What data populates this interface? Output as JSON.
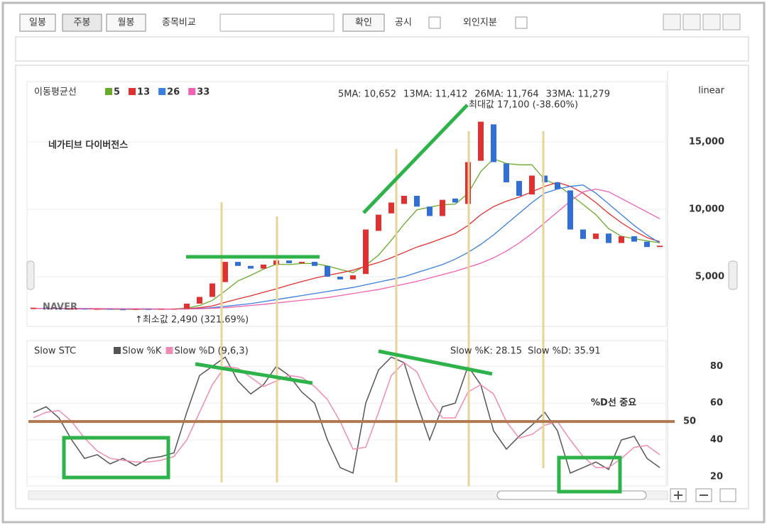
{
  "toolbar": {
    "buttons": [
      "일봉",
      "주봉",
      "월봉"
    ],
    "compare_label": "종목비교",
    "confirm": "확인",
    "checks": [
      "공시",
      "외인지분"
    ]
  },
  "price_chart": {
    "type": "candlestick",
    "ma_title": "이동평균선",
    "scale": "linear",
    "open": [
      2600,
      2700,
      2650,
      2600,
      2620,
      2580,
      2600,
      2570,
      2560,
      2590,
      2580,
      2600,
      2620,
      3000,
      3500,
      4600,
      6100,
      5800,
      5600,
      5900,
      6200,
      6000,
      6100,
      5800,
      5000,
      4800,
      5200,
      8400,
      9700,
      10400,
      11000,
      10200,
      9500,
      10800,
      10400,
      13600,
      16300,
      13400,
      12100,
      11100,
      12500,
      12000,
      11400,
      8500,
      7800,
      8200,
      7500,
      8000,
      7600,
      7200
    ],
    "close": [
      2700,
      2650,
      2600,
      2620,
      2580,
      2600,
      2570,
      2560,
      2590,
      2580,
      2600,
      2620,
      3000,
      3500,
      4500,
      6100,
      5800,
      5600,
      5900,
      6200,
      6000,
      6100,
      5800,
      5000,
      4800,
      5100,
      8500,
      9600,
      10500,
      11000,
      10200,
      9500,
      10700,
      10500,
      13500,
      16500,
      13500,
      12000,
      11000,
      12500,
      12000,
      11500,
      8500,
      7800,
      8200,
      7500,
      8000,
      7600,
      7200,
      7300
    ],
    "up_color": "#e03030",
    "down_color": "#2f6fd6",
    "ylim": [
      1316,
      19474
    ],
    "yticks": [
      {
        "value": 15000,
        "label": "15,000"
      },
      {
        "value": 10000,
        "label": "10,000"
      },
      {
        "value": 5000,
        "label": "5,000"
      }
    ],
    "ma": [
      {
        "name": "5",
        "color": "#6aaa2a",
        "values": [
          2650,
          2650,
          2640,
          2630,
          2620,
          2600,
          2590,
          2580,
          2580,
          2590,
          2590,
          2600,
          2680,
          2860,
          3240,
          3940,
          4680,
          5100,
          5560,
          5920,
          5900,
          5980,
          5980,
          5800,
          5540,
          5300,
          5840,
          6600,
          7700,
          8900,
          9960,
          10160,
          10340,
          10380,
          11180,
          12800,
          13740,
          13400,
          13300,
          13300,
          12200,
          11800,
          11100,
          10360,
          9600,
          8560,
          8000,
          7820,
          7660,
          7520
        ]
      },
      {
        "name": "13",
        "color": "#e03030",
        "values": [
          2650,
          2640,
          2630,
          2620,
          2610,
          2610,
          2600,
          2600,
          2600,
          2600,
          2600,
          2600,
          2630,
          2700,
          2830,
          3100,
          3350,
          3580,
          3840,
          4100,
          4380,
          4640,
          4890,
          5100,
          5280,
          5480,
          5780,
          6050,
          6400,
          6800,
          7200,
          7500,
          7850,
          8200,
          8800,
          9600,
          10200,
          10600,
          10900,
          11300,
          11700,
          12000,
          11700,
          11200,
          10500,
          9700,
          9000,
          8400,
          7900,
          7600
        ]
      },
      {
        "name": "26",
        "color": "#3a7fe0",
        "values": [
          2650,
          2650,
          2640,
          2640,
          2630,
          2630,
          2620,
          2620,
          2610,
          2610,
          2600,
          2600,
          2610,
          2640,
          2700,
          2800,
          2900,
          3000,
          3150,
          3300,
          3450,
          3600,
          3750,
          3900,
          4050,
          4200,
          4400,
          4600,
          4800,
          5000,
          5300,
          5600,
          5900,
          6300,
          6800,
          7400,
          8100,
          8900,
          9700,
          10500,
          11200,
          11500,
          11700,
          11800,
          11200,
          10400,
          9600,
          8800,
          8100,
          7500
        ]
      },
      {
        "name": "33",
        "color": "#f060b0",
        "values": [
          2650,
          2650,
          2650,
          2640,
          2640,
          2630,
          2630,
          2620,
          2620,
          2610,
          2610,
          2600,
          2600,
          2620,
          2650,
          2700,
          2780,
          2860,
          2950,
          3050,
          3150,
          3250,
          3350,
          3450,
          3600,
          3750,
          3900,
          4050,
          4250,
          4450,
          4650,
          4900,
          5150,
          5400,
          5700,
          6000,
          6400,
          6900,
          7500,
          8200,
          9000,
          9800,
          10600,
          11300,
          11500,
          11300,
          10800,
          10300,
          9800,
          9300
        ]
      }
    ],
    "ma_readout": [
      {
        "label": "5MA:",
        "value": "10,652"
      },
      {
        "label": "13MA:",
        "value": "11,412"
      },
      {
        "label": "26MA:",
        "value": "11,764"
      },
      {
        "label": "33MA:",
        "value": "11,279"
      }
    ],
    "max_label": "최대값 17,100 (-38.60%)",
    "min_label": "↑최소값 2,490 (321.69%)",
    "watermark": "NAVER"
  },
  "stoch_chart": {
    "type": "line",
    "title": "Slow STC",
    "series": [
      {
        "name": "Slow %K",
        "color": "#555555",
        "values": [
          55,
          58,
          52,
          40,
          30,
          32,
          27,
          30,
          26,
          30,
          31,
          33,
          55,
          75,
          80,
          85,
          72,
          65,
          70,
          80,
          75,
          66,
          60,
          40,
          25,
          22,
          60,
          78,
          85,
          82,
          60,
          40,
          58,
          60,
          80,
          70,
          45,
          35,
          42,
          48,
          55,
          45,
          22,
          25,
          28,
          24,
          40,
          42,
          30,
          25
        ]
      },
      {
        "name": "Slow %D (9,6,3)",
        "color": "#f08cb4",
        "values": [
          52,
          55,
          56,
          50,
          41,
          34,
          30,
          29,
          28,
          28,
          29,
          31,
          40,
          55,
          70,
          80,
          79,
          74,
          69,
          72,
          75,
          74,
          69,
          62,
          50,
          35,
          36,
          55,
          75,
          82,
          77,
          62,
          52,
          52,
          66,
          70,
          65,
          50,
          41,
          43,
          48,
          50,
          40,
          31,
          25,
          25,
          30,
          36,
          37,
          32
        ]
      }
    ],
    "readout": [
      {
        "label": "Slow %K:",
        "value": "28.15"
      },
      {
        "label": "Slow %D:",
        "value": "35.91"
      }
    ],
    "ylim": [
      15,
      94
    ],
    "yticks": [
      80,
      60,
      40,
      20
    ],
    "level": {
      "value": 50,
      "label": "50",
      "color": "#b07850"
    }
  },
  "annotations": {
    "divergence": "네가티브 다이버전스",
    "d_line": "%D선 중요"
  }
}
